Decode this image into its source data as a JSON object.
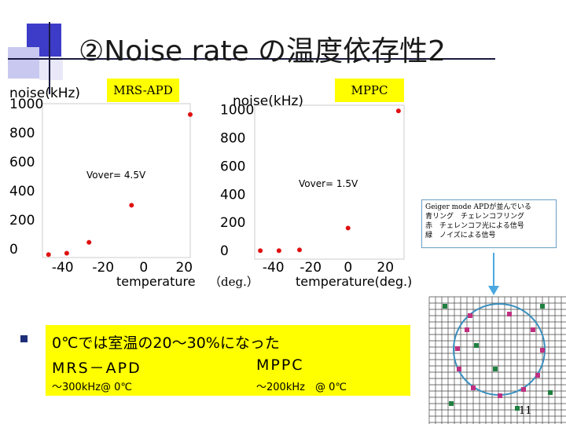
{
  "title": "②Noise rate の温度依存性2",
  "labels": {
    "mrs_apd": "MRS-APD",
    "mppc": "MPPC",
    "deg": "（deg.）"
  },
  "note_lines": [
    "Geiger mode APDが並んでいる",
    "青リング　チェレンコフリング",
    "赤　チェレンコフ光による信号",
    "緑　ノイズによる信号"
  ],
  "summary": {
    "line1": "0℃では室温の20～30%になった",
    "apd_label": "MRS－APD",
    "mppc_label": "MPPC",
    "apd_value": "～300kHz@ 0℃",
    "mppc_value": "～200kHz　@ 0℃"
  },
  "page_number": "11",
  "colors": {
    "accent_blue": "#3c3cc8",
    "marker_red": "#e01010",
    "highlight": "#ffff00",
    "ring": "#3a8fbf",
    "noise_green": "#208040",
    "signal_magenta": "#c03080"
  },
  "chart_data": [
    {
      "type": "scatter",
      "title": "",
      "xlabel": "temperature",
      "ylabel": "noise(kHz)",
      "xticks": [
        -40,
        -20,
        0,
        20
      ],
      "yticks": [
        0,
        200,
        400,
        600,
        800,
        1000
      ],
      "xlim": [
        -50,
        23
      ],
      "ylim": [
        -60,
        1000
      ],
      "annotation": "Vover= 4.5V",
      "series": [
        {
          "x": [
            -47,
            -38,
            -27,
            -6,
            23
          ],
          "y": [
            -40,
            -30,
            45,
            300,
            925
          ]
        }
      ]
    },
    {
      "type": "scatter",
      "title": "",
      "xlabel": "temperature(deg.)",
      "ylabel": "noise(kHz)",
      "xticks": [
        -40,
        -20,
        0,
        20
      ],
      "yticks": [
        0,
        200,
        400,
        600,
        800,
        1000
      ],
      "xlim": [
        -50,
        30
      ],
      "ylim": [
        -60,
        1030
      ],
      "annotation": "Vover= 1.5V",
      "series": [
        {
          "x": [
            -47,
            -37,
            -26,
            0,
            27
          ],
          "y": [
            0,
            0,
            5,
            160,
            990
          ]
        }
      ]
    }
  ]
}
